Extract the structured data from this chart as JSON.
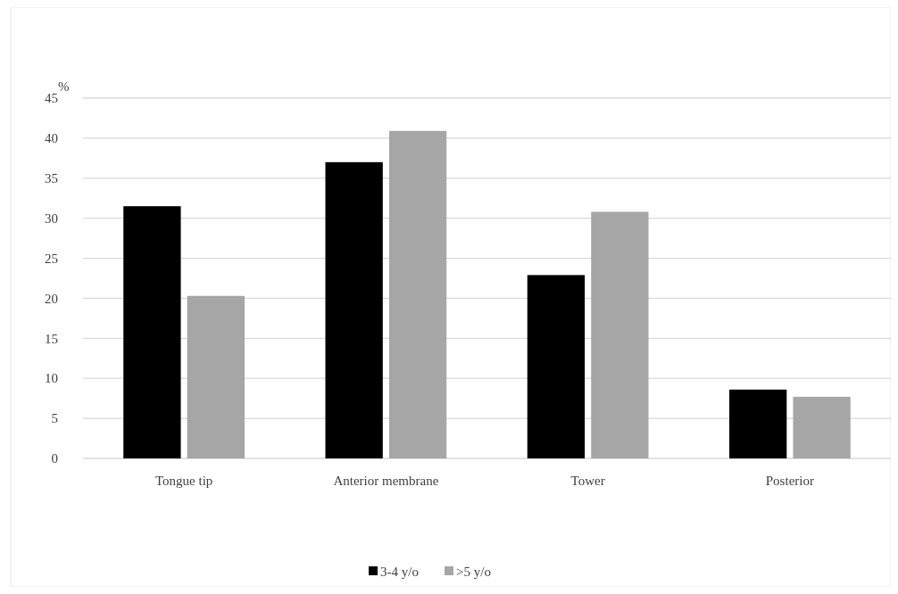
{
  "chart_data": {
    "type": "bar",
    "ylabel": "%",
    "categories": [
      "Tongue tip",
      "Anterior membrane",
      "Tower",
      "Posterior"
    ],
    "series": [
      {
        "name": "3-4 y/o",
        "color": "#000000",
        "values": [
          31.5,
          37.0,
          22.9,
          8.6
        ]
      },
      {
        "name": ">5 y/o",
        "color": "#a6a6a6",
        "values": [
          20.3,
          40.9,
          30.8,
          7.7
        ]
      }
    ],
    "ylim": [
      0,
      45
    ],
    "yticks": [
      0,
      5,
      10,
      15,
      20,
      25,
      30,
      35,
      40,
      45
    ],
    "grid": "y",
    "legend": "bottom"
  }
}
